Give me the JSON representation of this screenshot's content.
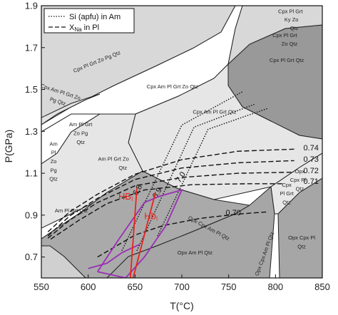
{
  "chart_data": {
    "type": "phase-diagram",
    "title": "",
    "xlabel": "T(°C)",
    "ylabel": "P(GPa)",
    "xlim": [
      550,
      850
    ],
    "ylim": [
      0.6,
      1.9
    ],
    "xticks": [
      550,
      600,
      650,
      700,
      750,
      800,
      850
    ],
    "yticks": [
      0.7,
      0.9,
      1.1,
      1.3,
      1.5,
      1.7,
      1.9
    ],
    "legend": {
      "placement": "top-left",
      "entries": [
        {
          "label": "Si (apfu) in Am",
          "style": "dotted"
        },
        {
          "label": "X",
          "label_sub": "Na",
          "label_tail": " in Pl",
          "style": "dashed"
        }
      ]
    },
    "field_labels": [
      {
        "text": "Cpx Pl Grt Zo Pg Qtz",
        "T": 610,
        "P": 1.625,
        "rotate": -22
      },
      {
        "text": "Cpx Am Pl Grt Zo Qtz",
        "T": 690,
        "P": 1.505,
        "rotate": 0
      },
      {
        "text": "Cpx Am Pl Grt Qtz",
        "T": 735,
        "P": 1.385,
        "rotate": 0
      },
      {
        "text": "Cpx Pl Grt Qtz",
        "T": 812,
        "P": 1.632,
        "rotate": 0
      },
      {
        "text": "Cpx Am Pl Grt Zo",
        "T": 570,
        "P": 1.48,
        "rotate": 18
      },
      {
        "text": "Pg Qtz",
        "T": 567,
        "P": 1.435,
        "rotate": 18
      },
      {
        "text": "Am Pl Grt",
        "T": 592,
        "P": 1.325,
        "rotate": 0
      },
      {
        "text": "Zo Pg",
        "T": 592,
        "P": 1.282,
        "rotate": 0
      },
      {
        "text": "Qtz",
        "T": 592,
        "P": 1.24,
        "rotate": 0
      },
      {
        "text": "Am",
        "T": 563,
        "P": 1.232,
        "rotate": 0
      },
      {
        "text": "Pl",
        "T": 563,
        "P": 1.19,
        "rotate": 0
      },
      {
        "text": "Zo",
        "T": 563,
        "P": 1.148,
        "rotate": 0
      },
      {
        "text": "Pg",
        "T": 563,
        "P": 1.106,
        "rotate": 0
      },
      {
        "text": "Qtz",
        "T": 563,
        "P": 1.064,
        "rotate": 0
      },
      {
        "text": "Am Pl Grt Zo",
        "T": 627,
        "P": 1.16,
        "rotate": 0
      },
      {
        "text": "Qtz",
        "T": 637,
        "P": 1.118,
        "rotate": 0
      },
      {
        "text": "Am Pl Grt Qtz",
        "T": 582,
        "P": 0.913,
        "rotate": 0
      },
      {
        "text": "Opx Am Pl Qtz",
        "T": 714,
        "P": 0.712,
        "rotate": 0
      },
      {
        "text": "Opx Cpx Am Pl Qtz",
        "T": 728,
        "P": 0.83,
        "rotate": 28
      },
      {
        "text": "Opx Cpx Am Pl Qtz",
        "T": 790,
        "P": 0.712,
        "rotate": -70
      },
      {
        "text": "Opx Cpx Pl",
        "T": 828,
        "P": 0.783,
        "rotate": 0
      },
      {
        "text": "Qtz",
        "T": 828,
        "P": 0.741,
        "rotate": 0
      },
      {
        "text": "Opx",
        "T": 826,
        "P": 1.1,
        "rotate": 0
      },
      {
        "text": "Cpx Pl",
        "T": 824,
        "P": 1.059,
        "rotate": 0
      },
      {
        "text": "Qtz",
        "T": 826,
        "P": 1.017,
        "rotate": 0
      },
      {
        "text": "Cpx",
        "T": 812,
        "P": 1.036,
        "rotate": 0
      },
      {
        "text": "Pl Grt",
        "T": 812,
        "P": 0.994,
        "rotate": 0
      },
      {
        "text": "Qtz",
        "T": 812,
        "P": 0.952,
        "rotate": 0
      },
      {
        "text": "Cpx Pl Grt",
        "T": 816,
        "P": 1.865,
        "rotate": 0
      },
      {
        "text": "Ky Zo",
        "T": 817,
        "P": 1.825,
        "rotate": 0
      },
      {
        "text": "Qtz",
        "T": 820,
        "P": 1.785,
        "rotate": 0
      },
      {
        "text": "Cpx Pl Grt",
        "T": 810,
        "P": 1.75,
        "rotate": 0
      },
      {
        "text": "Zo Qtz",
        "T": 815,
        "P": 1.71,
        "rotate": 0
      }
    ],
    "xna_isopleths": [
      {
        "value": "0.74",
        "label_T": 838,
        "label_P": 1.21,
        "points": [
          [
            557,
            0.82
          ],
          [
            580,
            0.915
          ],
          [
            610,
            1.0
          ],
          [
            650,
            1.095
          ],
          [
            700,
            1.165
          ],
          [
            760,
            1.205
          ],
          [
            820,
            1.215
          ]
        ]
      },
      {
        "value": "0.73",
        "label_T": 838,
        "label_P": 1.155,
        "points": [
          [
            557,
            0.8
          ],
          [
            580,
            0.895
          ],
          [
            610,
            0.98
          ],
          [
            650,
            1.07
          ],
          [
            700,
            1.125
          ],
          [
            760,
            1.15
          ],
          [
            820,
            1.16
          ]
        ]
      },
      {
        "value": "0.72",
        "label_T": 838,
        "label_P": 1.1,
        "points": [
          [
            557,
            0.79
          ],
          [
            580,
            0.875
          ],
          [
            610,
            0.96
          ],
          [
            650,
            1.04
          ],
          [
            700,
            1.08
          ],
          [
            760,
            1.1
          ],
          [
            820,
            1.105
          ]
        ]
      },
      {
        "value": "0.71",
        "label_T": 838,
        "label_P": 1.05,
        "points": [
          [
            560,
            0.785
          ],
          [
            590,
            0.875
          ],
          [
            620,
            0.955
          ],
          [
            660,
            1.02
          ],
          [
            710,
            1.045
          ],
          [
            770,
            1.05
          ],
          [
            810,
            1.05
          ]
        ]
      },
      {
        "value": "0.70",
        "label_T": 755,
        "label_P": 0.9,
        "points": [
          [
            610,
            0.7
          ],
          [
            650,
            0.805
          ],
          [
            680,
            0.85
          ],
          [
            720,
            0.885
          ],
          [
            760,
            0.905
          ],
          [
            790,
            0.915
          ]
        ]
      }
    ],
    "si_isopleths": [
      {
        "value": "6.8",
        "label_T": 655,
        "label_P": 1.015,
        "rotate": -62,
        "points": [
          [
            636,
            0.73
          ],
          [
            700,
            1.33
          ],
          [
            765,
            1.49
          ]
        ]
      },
      {
        "value": "6.9",
        "label_T": 676,
        "label_P": 1.0,
        "rotate": -60,
        "points": [
          [
            652,
            0.73
          ],
          [
            713,
            1.32
          ],
          [
            778,
            1.43
          ]
        ]
      },
      {
        "value": "7.0",
        "label_T": 701,
        "label_P": 1.075,
        "rotate": -58,
        "points": [
          [
            674,
            0.8
          ],
          [
            728,
            1.31
          ],
          [
            792,
            1.41
          ]
        ]
      }
    ],
    "hb_lines": [
      {
        "label": "HB",
        "sub": "I",
        "label_T": 640,
        "label_P": 0.975,
        "points": [
          [
            645,
            0.6
          ],
          [
            652,
            1.03
          ]
        ]
      },
      {
        "label": "Hb",
        "sub": "I",
        "label_T": 667,
        "label_P": 0.88,
        "points": [
          [
            648,
            0.6
          ],
          [
            672,
            1.01
          ]
        ]
      }
    ],
    "pt_envelopes": [
      {
        "color": "#9b2fb5",
        "points": [
          [
            610,
            0.63
          ],
          [
            632,
            0.78
          ],
          [
            660,
            0.96
          ],
          [
            676,
            0.99
          ],
          [
            700,
            1.02
          ],
          [
            683,
            0.85
          ],
          [
            660,
            0.7
          ],
          [
            640,
            0.6
          ],
          [
            610,
            0.63
          ]
        ]
      },
      {
        "color": "#9b2fb5",
        "points": [
          [
            600,
            0.645
          ],
          [
            620,
            0.67
          ],
          [
            636,
            0.72
          ],
          [
            645,
            0.74
          ],
          [
            655,
            0.76
          ]
        ]
      }
    ]
  }
}
